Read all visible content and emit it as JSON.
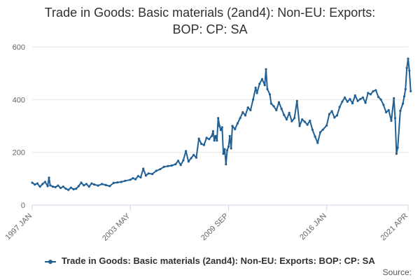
{
  "title_lines": [
    "Trade in Goods: Basic materials (2and4): Non-EU: Exports:",
    "BOP: CP: SA"
  ],
  "source_label": "Source:",
  "colors": {
    "series": "#206095",
    "grid": "#e6e6e6",
    "axis": "#ccd6eb",
    "text": "#666666"
  },
  "chart_data": {
    "type": "line",
    "title": "Trade in Goods: Basic materials (2and4): Non-EU: Exports: BOP: CP: SA",
    "xlabel": "",
    "ylabel": "",
    "ylim": [
      0,
      600
    ],
    "yticks": [
      0,
      200,
      400,
      600
    ],
    "grid": true,
    "legend_placement": "bottom",
    "xticks": [
      {
        "label": "1997 JAN",
        "date": "1997-01"
      },
      {
        "label": "2003 MAY",
        "date": "2003-05"
      },
      {
        "label": "2009 SEP",
        "date": "2009-09"
      },
      {
        "label": "2016 JAN",
        "date": "2016-01"
      },
      {
        "label": "2021 APR",
        "date": "2021-04"
      }
    ],
    "series": [
      {
        "name": "Trade in Goods: Basic materials (2and4): Non-EU: Exports: BOP: CP: SA",
        "points": [
          [
            "1997-01",
            85
          ],
          [
            "1997-03",
            78
          ],
          [
            "1997-05",
            82
          ],
          [
            "1997-07",
            70
          ],
          [
            "1997-09",
            80
          ],
          [
            "1997-11",
            88
          ],
          [
            "1998-01",
            72
          ],
          [
            "1998-02",
            104
          ],
          [
            "1998-03",
            75
          ],
          [
            "1998-05",
            70
          ],
          [
            "1998-07",
            68
          ],
          [
            "1998-09",
            74
          ],
          [
            "1998-11",
            65
          ],
          [
            "1999-01",
            70
          ],
          [
            "1999-03",
            62
          ],
          [
            "1999-05",
            58
          ],
          [
            "1999-07",
            66
          ],
          [
            "1999-09",
            60
          ],
          [
            "1999-11",
            62
          ],
          [
            "2000-01",
            72
          ],
          [
            "2000-03",
            85
          ],
          [
            "2000-05",
            75
          ],
          [
            "2000-07",
            80
          ],
          [
            "2000-09",
            70
          ],
          [
            "2000-11",
            82
          ],
          [
            "2001-01",
            78
          ],
          [
            "2001-04",
            74
          ],
          [
            "2001-07",
            80
          ],
          [
            "2001-10",
            76
          ],
          [
            "2002-01",
            72
          ],
          [
            "2002-04",
            84
          ],
          [
            "2002-07",
            86
          ],
          [
            "2002-10",
            88
          ],
          [
            "2003-01",
            92
          ],
          [
            "2003-05",
            96
          ],
          [
            "2003-07",
            102
          ],
          [
            "2003-09",
            98
          ],
          [
            "2003-11",
            110
          ],
          [
            "2004-01",
            105
          ],
          [
            "2004-03",
            138
          ],
          [
            "2004-05",
            112
          ],
          [
            "2004-07",
            120
          ],
          [
            "2004-10",
            118
          ],
          [
            "2005-01",
            130
          ],
          [
            "2005-04",
            136
          ],
          [
            "2005-07",
            145
          ],
          [
            "2005-10",
            148
          ],
          [
            "2006-01",
            150
          ],
          [
            "2006-04",
            155
          ],
          [
            "2006-06",
            168
          ],
          [
            "2006-08",
            152
          ],
          [
            "2006-10",
            170
          ],
          [
            "2006-12",
            205
          ],
          [
            "2007-02",
            165
          ],
          [
            "2007-04",
            178
          ],
          [
            "2007-06",
            190
          ],
          [
            "2007-08",
            180
          ],
          [
            "2007-10",
            252
          ],
          [
            "2007-12",
            232
          ],
          [
            "2008-02",
            228
          ],
          [
            "2008-04",
            255
          ],
          [
            "2008-06",
            250
          ],
          [
            "2008-08",
            262
          ],
          [
            "2008-09",
            280
          ],
          [
            "2008-10",
            245
          ],
          [
            "2008-11",
            262
          ],
          [
            "2008-12",
            245
          ],
          [
            "2009-01",
            330
          ],
          [
            "2009-02",
            300
          ],
          [
            "2009-03",
            285
          ],
          [
            "2009-04",
            295
          ],
          [
            "2009-05",
            195
          ],
          [
            "2009-06",
            212
          ],
          [
            "2009-07",
            155
          ],
          [
            "2009-08",
            208
          ],
          [
            "2009-09",
            222
          ],
          [
            "2009-10",
            262
          ],
          [
            "2009-11",
            215
          ],
          [
            "2009-12",
            300
          ],
          [
            "2010-02",
            288
          ],
          [
            "2010-04",
            310
          ],
          [
            "2010-06",
            330
          ],
          [
            "2010-08",
            352
          ],
          [
            "2010-10",
            340
          ],
          [
            "2010-12",
            370
          ],
          [
            "2011-02",
            360
          ],
          [
            "2011-04",
            400
          ],
          [
            "2011-06",
            445
          ],
          [
            "2011-07",
            425
          ],
          [
            "2011-09",
            460
          ],
          [
            "2011-11",
            478
          ],
          [
            "2012-01",
            455
          ],
          [
            "2012-02",
            515
          ],
          [
            "2012-03",
            440
          ],
          [
            "2012-05",
            420
          ],
          [
            "2012-06",
            385
          ],
          [
            "2012-08",
            375
          ],
          [
            "2012-10",
            360
          ],
          [
            "2012-12",
            390
          ],
          [
            "2013-02",
            365
          ],
          [
            "2013-04",
            342
          ],
          [
            "2013-06",
            325
          ],
          [
            "2013-08",
            350
          ],
          [
            "2013-10",
            318
          ],
          [
            "2013-12",
            330
          ],
          [
            "2014-02",
            395
          ],
          [
            "2014-04",
            300
          ],
          [
            "2014-06",
            325
          ],
          [
            "2014-08",
            316
          ],
          [
            "2014-10",
            305
          ],
          [
            "2014-12",
            320
          ],
          [
            "2015-02",
            286
          ],
          [
            "2015-04",
            260
          ],
          [
            "2015-06",
            236
          ],
          [
            "2015-08",
            276
          ],
          [
            "2015-10",
            286
          ],
          [
            "2016-01",
            302
          ],
          [
            "2016-03",
            345
          ],
          [
            "2016-05",
            356
          ],
          [
            "2016-07",
            332
          ],
          [
            "2016-09",
            340
          ],
          [
            "2016-11",
            372
          ],
          [
            "2017-01",
            392
          ],
          [
            "2017-03",
            408
          ],
          [
            "2017-05",
            392
          ],
          [
            "2017-07",
            402
          ],
          [
            "2017-09",
            386
          ],
          [
            "2017-11",
            416
          ],
          [
            "2018-01",
            395
          ],
          [
            "2018-03",
            402
          ],
          [
            "2018-05",
            408
          ],
          [
            "2018-07",
            388
          ],
          [
            "2018-09",
            425
          ],
          [
            "2018-11",
            420
          ],
          [
            "2019-01",
            432
          ],
          [
            "2019-03",
            436
          ],
          [
            "2019-05",
            410
          ],
          [
            "2019-07",
            400
          ],
          [
            "2019-09",
            380
          ],
          [
            "2019-11",
            352
          ],
          [
            "2020-01",
            360
          ],
          [
            "2020-03",
            320
          ],
          [
            "2020-05",
            405
          ],
          [
            "2020-06",
            330
          ],
          [
            "2020-07",
            195
          ],
          [
            "2020-08",
            218
          ],
          [
            "2020-10",
            358
          ],
          [
            "2020-12",
            385
          ],
          [
            "2021-01",
            412
          ],
          [
            "2021-02",
            440
          ],
          [
            "2021-03",
            520
          ],
          [
            "2021-04",
            555
          ],
          [
            "2021-05",
            510
          ],
          [
            "2021-06",
            432
          ]
        ]
      }
    ]
  }
}
